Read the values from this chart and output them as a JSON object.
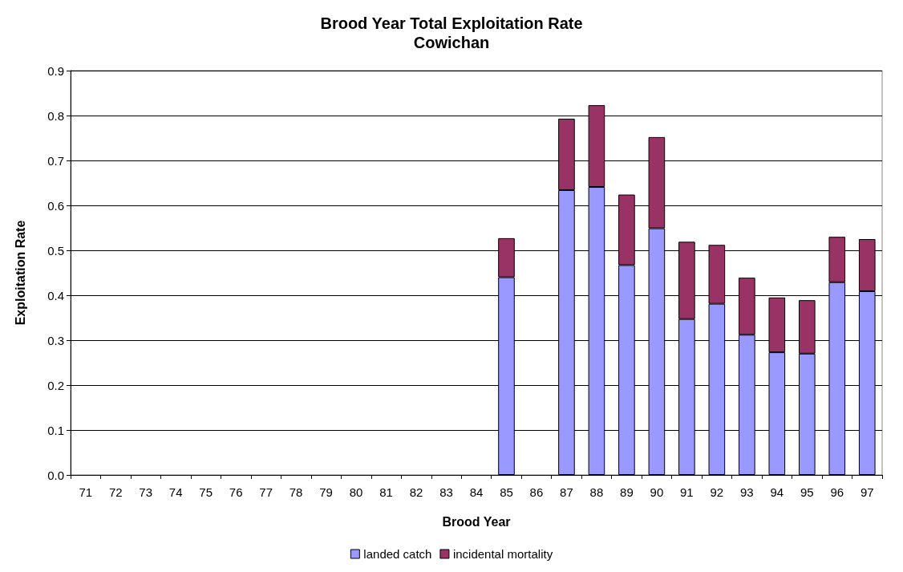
{
  "chart_data": {
    "type": "bar",
    "title": "Brood Year Total Exploitation Rate",
    "subtitle": "Cowichan",
    "xlabel": "Brood Year",
    "ylabel": "Exploitation Rate",
    "categories": [
      "71",
      "72",
      "73",
      "74",
      "75",
      "76",
      "77",
      "78",
      "79",
      "80",
      "81",
      "82",
      "83",
      "84",
      "85",
      "86",
      "87",
      "88",
      "89",
      "90",
      "91",
      "92",
      "93",
      "94",
      "95",
      "96",
      "97"
    ],
    "stacked": true,
    "series": [
      {
        "name": "landed catch",
        "color": "#9999ff",
        "values": [
          null,
          null,
          null,
          null,
          null,
          null,
          null,
          null,
          null,
          null,
          null,
          null,
          null,
          null,
          0.44,
          null,
          0.634,
          0.641,
          0.467,
          0.549,
          0.347,
          0.381,
          0.312,
          0.273,
          0.27,
          0.429,
          0.409
        ]
      },
      {
        "name": "incidental mortality",
        "color": "#993366",
        "values": [
          null,
          null,
          null,
          null,
          null,
          null,
          null,
          null,
          null,
          null,
          null,
          null,
          null,
          null,
          0.087,
          null,
          0.159,
          0.182,
          0.157,
          0.203,
          0.172,
          0.131,
          0.127,
          0.122,
          0.119,
          0.101,
          0.116
        ]
      }
    ],
    "ylim": [
      0,
      0.9
    ],
    "yticks": [
      {
        "value": 0,
        "label": "0.0"
      },
      0.1,
      0.2,
      0.3,
      0.4,
      0.5,
      0.6,
      0.7,
      0.8,
      0.9
    ],
    "grid": "y",
    "legend": "bottom"
  }
}
